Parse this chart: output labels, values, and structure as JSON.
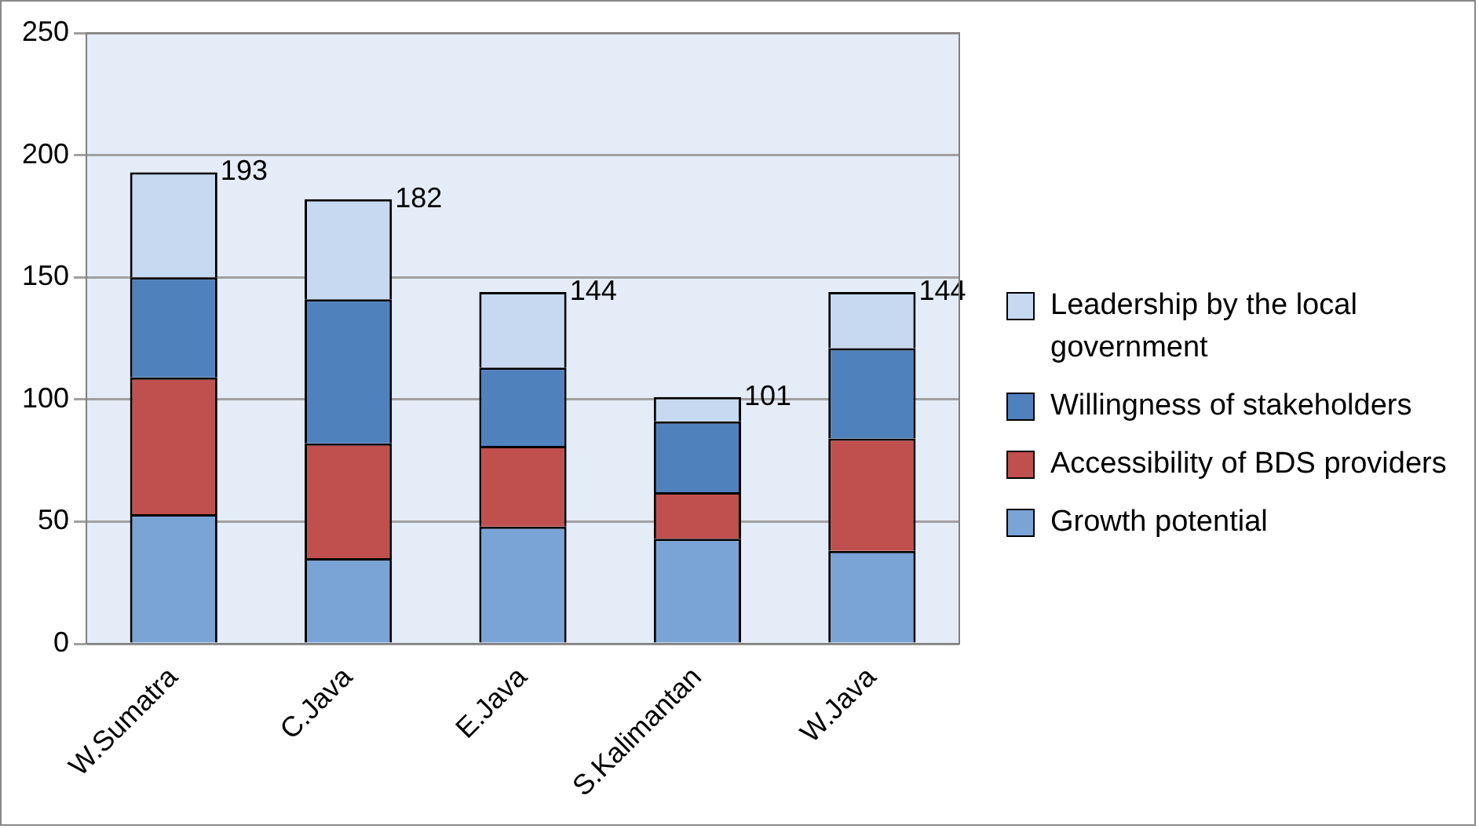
{
  "chart_data": {
    "type": "bar",
    "stacked": true,
    "categories": [
      "W.Sumatra",
      "C.Java",
      "E.Java",
      "S.Kalimantan",
      "W.Java"
    ],
    "series": [
      {
        "name": "Growth potential",
        "color": "#7aa3d6",
        "values": [
          53,
          35,
          48,
          43,
          38
        ]
      },
      {
        "name": "Accessibility of BDS providers",
        "color": "#c0504d",
        "values": [
          56,
          47,
          33,
          19,
          46
        ]
      },
      {
        "name": "Willingness of stakeholders",
        "color": "#4f81bd",
        "values": [
          41,
          59,
          32,
          29,
          37
        ]
      },
      {
        "name": "Leadership by the local government",
        "color": "#c6d9f1",
        "values": [
          43,
          41,
          31,
          10,
          23
        ]
      }
    ],
    "totals": [
      "193",
      "182",
      "144",
      "101",
      "144"
    ],
    "ylim": [
      0,
      250
    ],
    "yticks": [
      0,
      50,
      100,
      150,
      200,
      250
    ],
    "grid": "y",
    "legend": "right"
  }
}
